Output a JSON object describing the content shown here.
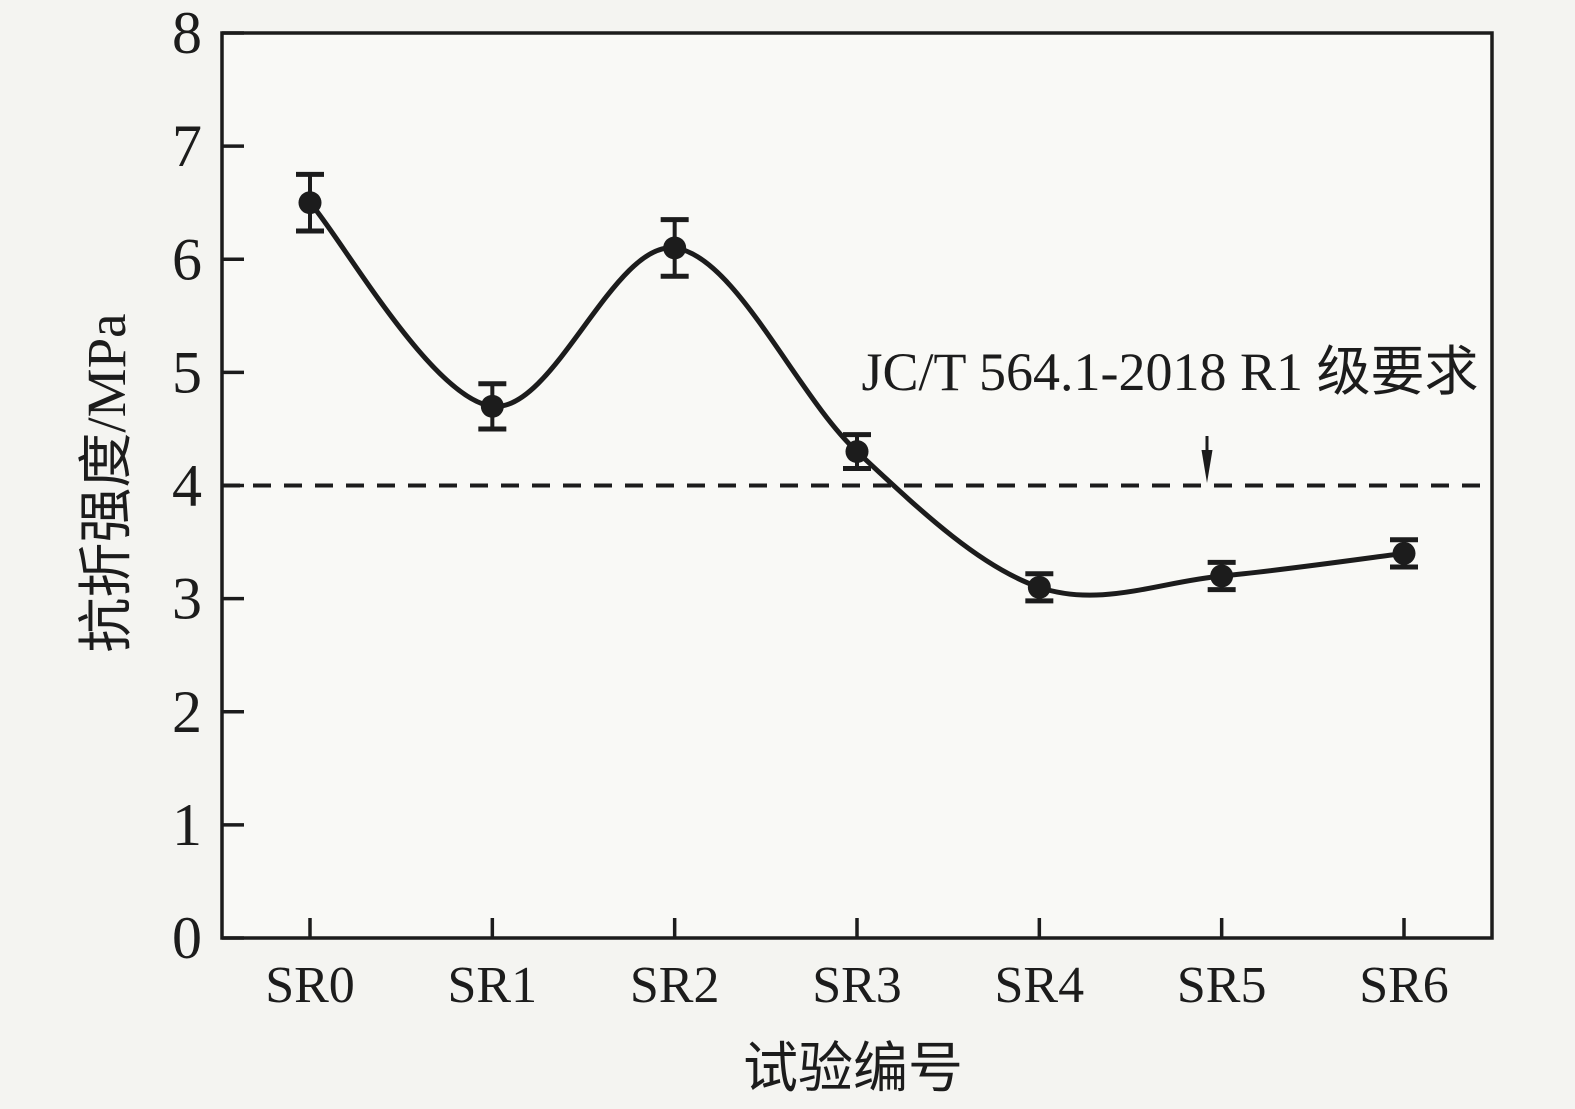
{
  "figure": {
    "colors": {
      "background": "#f4f4f1",
      "plot_background": "#f9f9f6",
      "ink": "#1c1c1c"
    }
  },
  "chart_data": {
    "type": "line",
    "title": "",
    "xlabel": "试验编号",
    "ylabel": "抗折强度/MPa",
    "categories": [
      "SR0",
      "SR1",
      "SR2",
      "SR3",
      "SR4",
      "SR5",
      "SR6"
    ],
    "series": [
      {
        "values": [
          6.5,
          4.7,
          6.1,
          4.3,
          3.1,
          3.2,
          3.4
        ],
        "errors": [
          0.25,
          0.2,
          0.25,
          0.15,
          0.12,
          0.12,
          0.12
        ],
        "marker": "filled-circle",
        "smooth": true
      }
    ],
    "ylim": [
      0,
      8
    ],
    "yticks": [
      0,
      1,
      2,
      3,
      4,
      5,
      6,
      7,
      8
    ],
    "grid": false,
    "legend": null,
    "reference_line": {
      "value": 4,
      "style": "dashed",
      "label": "JC/T 564.1-2018 R1 级要求",
      "arrow": true
    }
  }
}
